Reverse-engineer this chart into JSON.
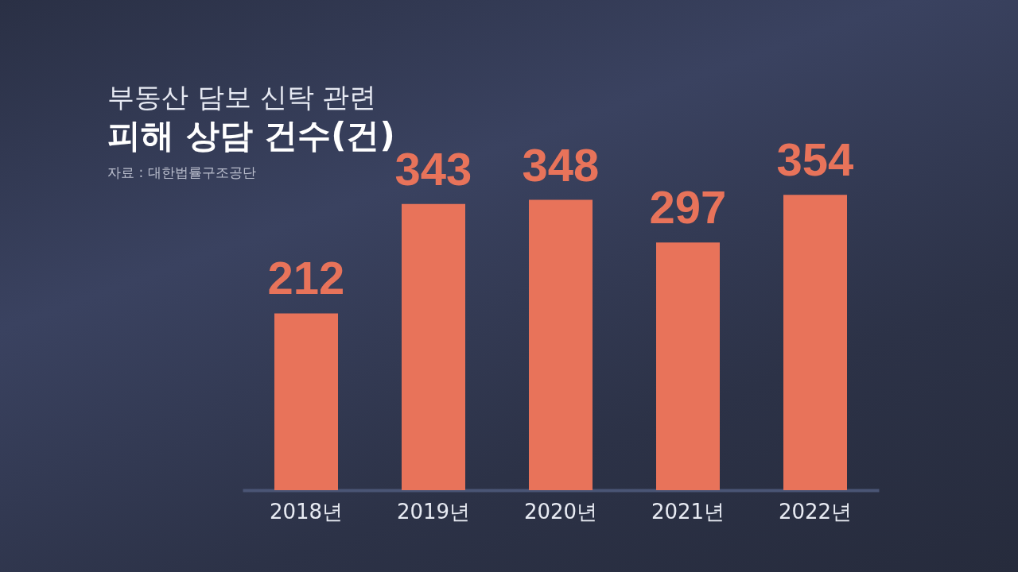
{
  "chart_data": {
    "type": "bar",
    "title": "부동산 담보 신탁 관련",
    "subtitle": "피해 상담 건수(건)",
    "annotations": [
      "자료 : 대한법률구조공단"
    ],
    "categories": [
      "2018년",
      "2019년",
      "2020년",
      "2021년",
      "2022년"
    ],
    "values": [
      212,
      343,
      348,
      297,
      354
    ],
    "color": "#e8735a",
    "data_labels": true,
    "grid": false
  }
}
